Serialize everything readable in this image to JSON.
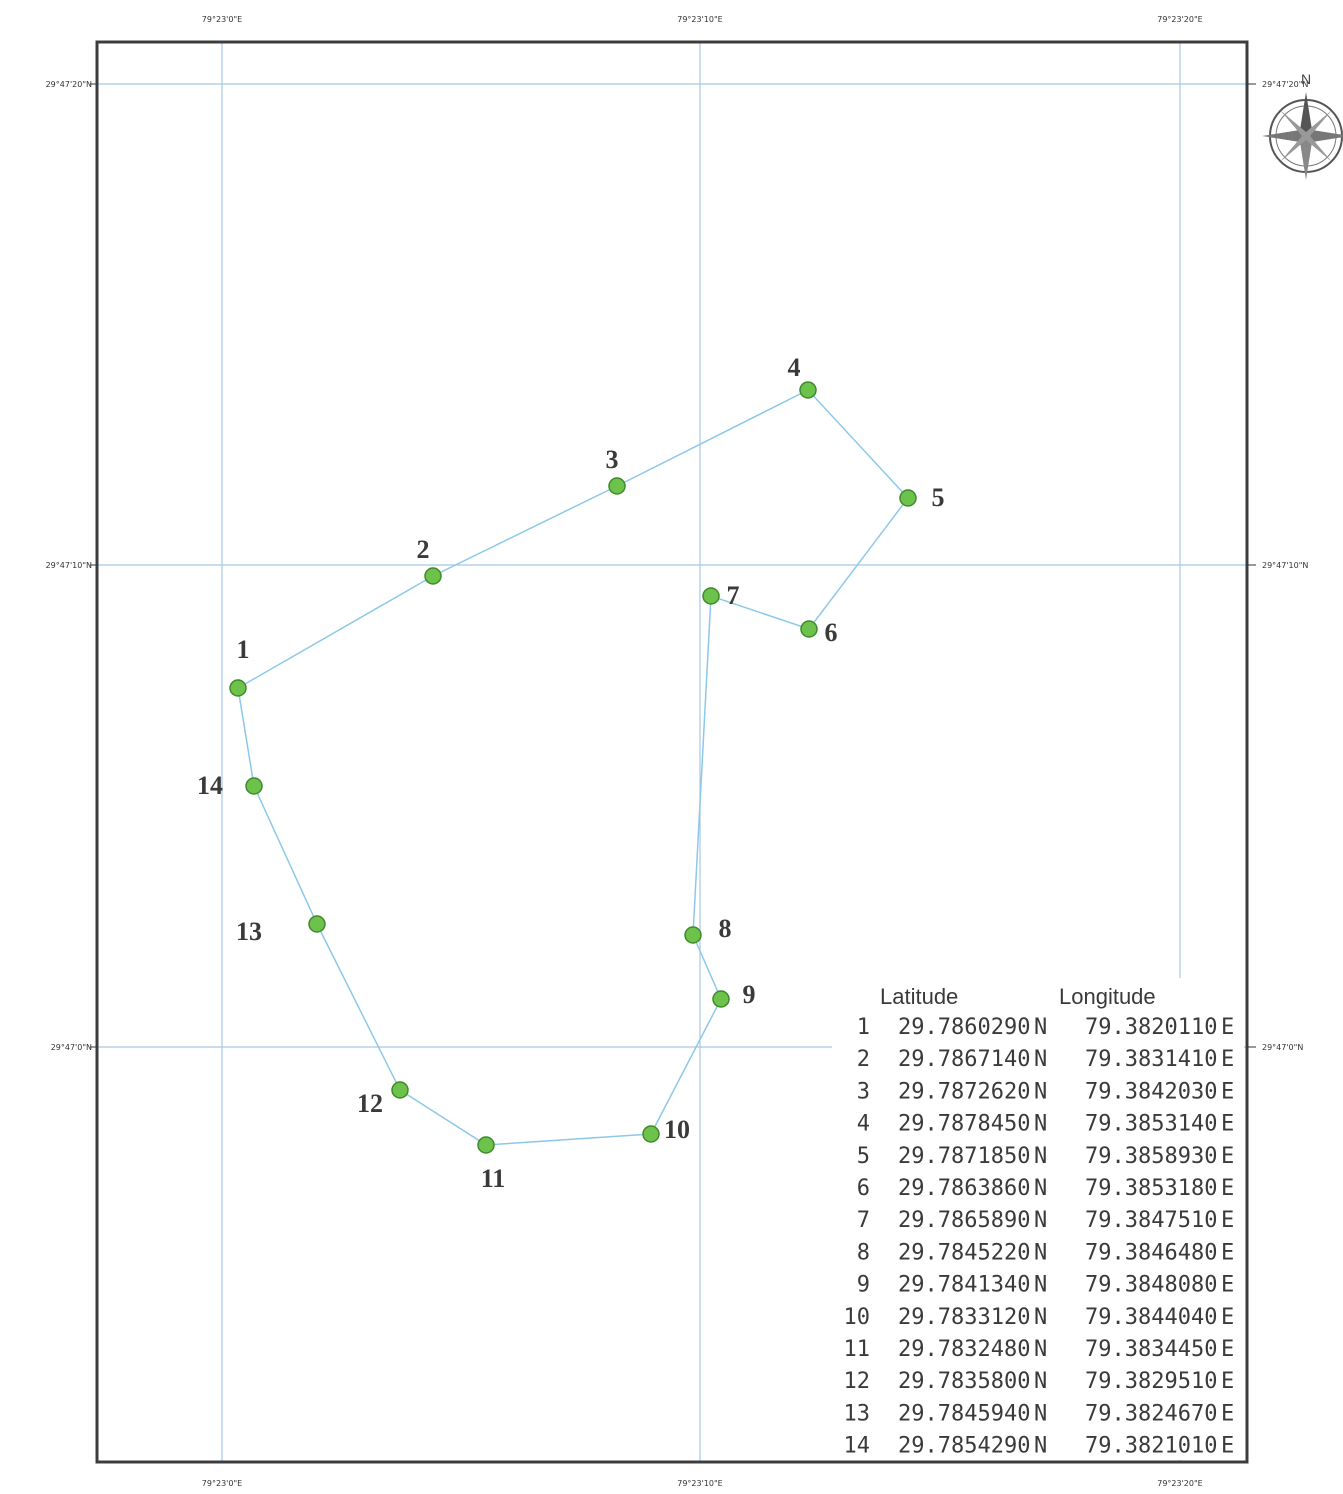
{
  "grid": {
    "top_labels": [
      "79°23'0\"E",
      "79°23'10\"E",
      "79°23'20\"E"
    ],
    "bottom_labels": [
      "79°23'0\"E",
      "79°23'10\"E",
      "79°23'20\"E"
    ],
    "left_labels": [
      "29°47'20\"N",
      "29°47'10\"N",
      "29°47'0\"N"
    ],
    "right_labels": [
      "29°47'20\"N",
      "29°47'10\"N",
      "29°47'0\"N"
    ]
  },
  "north_arrow": {
    "letter": "N",
    "icon": "compass-rose-icon"
  },
  "colors": {
    "frame": "#3c3c3c",
    "grid": "#a8c8e6",
    "boundary": "#8cc8ea",
    "point_fill": "#6cc24a",
    "point_stroke": "#3f8a2a"
  },
  "table": {
    "headers": {
      "latitude": "Latitude",
      "longitude": "Longitude"
    },
    "rows": [
      {
        "n": "1",
        "lat": "29.7860290",
        "ns": "N",
        "lon": "79.3820110",
        "ew": "E"
      },
      {
        "n": "2",
        "lat": "29.7867140",
        "ns": "N",
        "lon": "79.3831410",
        "ew": "E"
      },
      {
        "n": "3",
        "lat": "29.7872620",
        "ns": "N",
        "lon": "79.3842030",
        "ew": "E"
      },
      {
        "n": "4",
        "lat": "29.7878450",
        "ns": "N",
        "lon": "79.3853140",
        "ew": "E"
      },
      {
        "n": "5",
        "lat": "29.7871850",
        "ns": "N",
        "lon": "79.3858930",
        "ew": "E"
      },
      {
        "n": "6",
        "lat": "29.7863860",
        "ns": "N",
        "lon": "79.3853180",
        "ew": "E"
      },
      {
        "n": "7",
        "lat": "29.7865890",
        "ns": "N",
        "lon": "79.3847510",
        "ew": "E"
      },
      {
        "n": "8",
        "lat": "29.7845220",
        "ns": "N",
        "lon": "79.3846480",
        "ew": "E"
      },
      {
        "n": "9",
        "lat": "29.7841340",
        "ns": "N",
        "lon": "79.3848080",
        "ew": "E"
      },
      {
        "n": "10",
        "lat": "29.7833120",
        "ns": "N",
        "lon": "79.3844040",
        "ew": "E"
      },
      {
        "n": "11",
        "lat": "29.7832480",
        "ns": "N",
        "lon": "79.3834450",
        "ew": "E"
      },
      {
        "n": "12",
        "lat": "29.7835800",
        "ns": "N",
        "lon": "79.3829510",
        "ew": "E"
      },
      {
        "n": "13",
        "lat": "29.7845940",
        "ns": "N",
        "lon": "79.3824670",
        "ew": "E"
      },
      {
        "n": "14",
        "lat": "29.7854290",
        "ns": "N",
        "lon": "79.3821010",
        "ew": "E"
      }
    ]
  },
  "points": [
    {
      "label": "1"
    },
    {
      "label": "2"
    },
    {
      "label": "3"
    },
    {
      "label": "4"
    },
    {
      "label": "5"
    },
    {
      "label": "6"
    },
    {
      "label": "7"
    },
    {
      "label": "8"
    },
    {
      "label": "9"
    },
    {
      "label": "10"
    },
    {
      "label": "11"
    },
    {
      "label": "12"
    },
    {
      "label": "13"
    },
    {
      "label": "14"
    }
  ]
}
